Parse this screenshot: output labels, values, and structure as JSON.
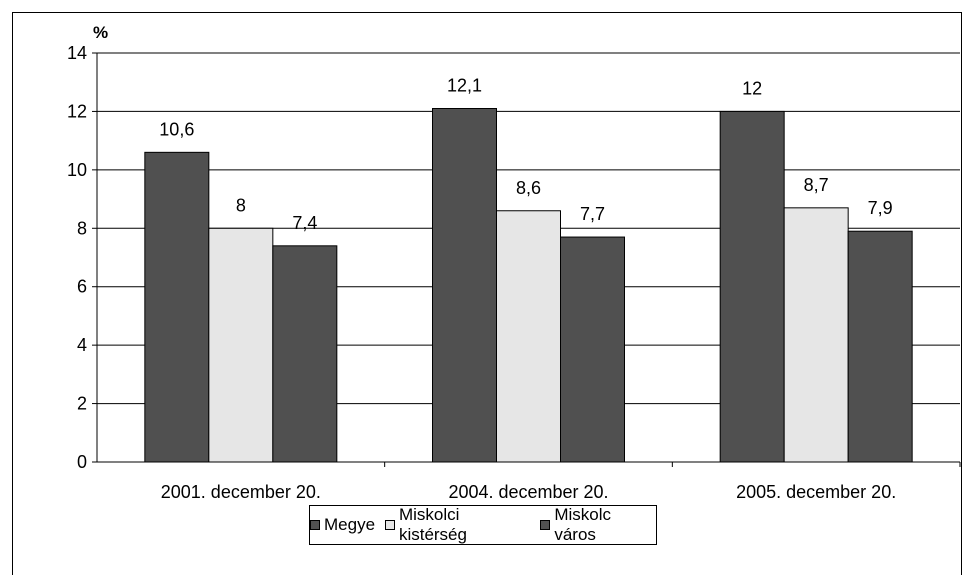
{
  "chart_data": {
    "type": "bar",
    "unit_label": "%",
    "categories": [
      "2001. december 20.",
      "2004. december 20.",
      "2005. december 20."
    ],
    "series": [
      {
        "name": "Megye",
        "color": "#505050",
        "values": [
          10.6,
          12.1,
          12
        ],
        "labels": [
          "10,6",
          "12,1",
          "12"
        ]
      },
      {
        "name": "Miskolci kistérség",
        "color": "#e6e6e6",
        "values": [
          8,
          8.6,
          8.7
        ],
        "labels": [
          "8",
          "8,6",
          "8,7"
        ]
      },
      {
        "name": "Miskolc város",
        "color": "#505050",
        "values": [
          7.4,
          7.7,
          7.9
        ],
        "labels": [
          "7,4",
          "7,7",
          "7,9"
        ]
      }
    ],
    "ylim": [
      0,
      14
    ],
    "yticks": [
      0,
      2,
      4,
      6,
      8,
      10,
      12,
      14
    ],
    "grid": true,
    "legend_position": "bottom"
  }
}
